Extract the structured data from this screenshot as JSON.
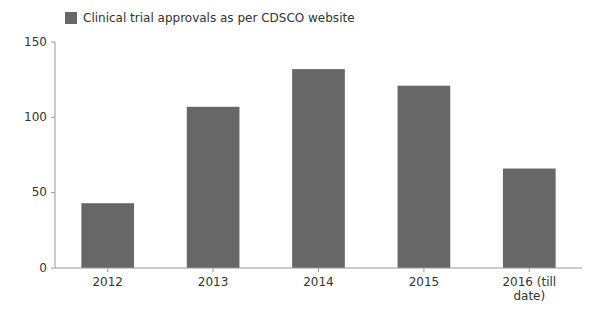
{
  "chart_data": {
    "type": "bar",
    "categories": [
      "2012",
      "2013",
      "2014",
      "2015",
      "2016 (till\ndate)"
    ],
    "series": [
      {
        "name": "Clinical trial approvals as per CDSCO website",
        "color": "#676767",
        "values": [
          43,
          107,
          132,
          121,
          66
        ]
      }
    ],
    "ylim": [
      0,
      150
    ],
    "yticks": [
      0,
      50,
      100,
      150
    ],
    "grid": false,
    "legend": "upper left"
  }
}
